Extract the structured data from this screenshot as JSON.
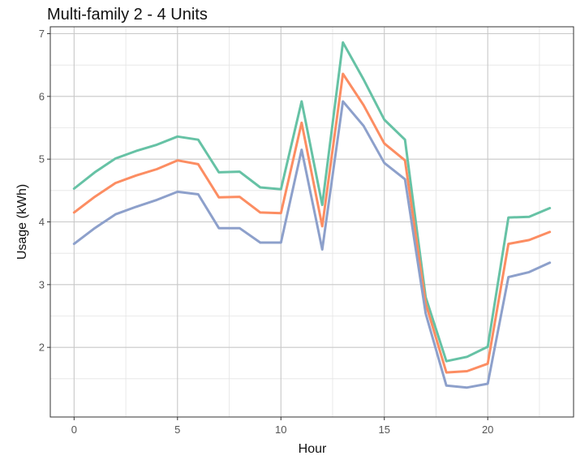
{
  "chart_data": {
    "type": "line",
    "title": "Multi-family 2 - 4 Units",
    "xlabel": "Hour",
    "ylabel": "Usage (kWh)",
    "xlim": [
      -1.15,
      24.15
    ],
    "ylim": [
      0.89,
      7.11
    ],
    "xticks": [
      0,
      5,
      10,
      15,
      20
    ],
    "yticks": [
      2,
      3,
      4,
      5,
      6,
      7
    ],
    "grid": true,
    "legend": "none",
    "x": [
      0,
      1,
      2,
      3,
      4,
      5,
      6,
      7,
      8,
      9,
      10,
      11,
      12,
      13,
      14,
      15,
      16,
      17,
      18,
      19,
      20,
      21,
      22,
      23
    ],
    "series": [
      {
        "color": "#66c2a5",
        "values": [
          4.53,
          4.79,
          5.01,
          5.13,
          5.23,
          5.36,
          5.31,
          4.79,
          4.8,
          4.55,
          4.52,
          5.92,
          4.27,
          6.86,
          6.27,
          5.63,
          5.31,
          2.8,
          1.78,
          1.85,
          2.01,
          4.07,
          4.08,
          4.22
        ]
      },
      {
        "color": "#fc8d62",
        "values": [
          4.15,
          4.4,
          4.62,
          4.74,
          4.84,
          4.98,
          4.92,
          4.39,
          4.4,
          4.15,
          4.14,
          5.58,
          3.93,
          6.36,
          5.86,
          5.25,
          4.98,
          2.7,
          1.6,
          1.62,
          1.74,
          3.65,
          3.71,
          3.84
        ]
      },
      {
        "color": "#8da0cb",
        "values": [
          3.65,
          3.9,
          4.12,
          4.24,
          4.35,
          4.48,
          4.44,
          3.9,
          3.9,
          3.67,
          3.67,
          5.15,
          3.56,
          5.92,
          5.53,
          4.94,
          4.68,
          2.54,
          1.39,
          1.36,
          1.42,
          3.12,
          3.2,
          3.35
        ]
      }
    ]
  }
}
